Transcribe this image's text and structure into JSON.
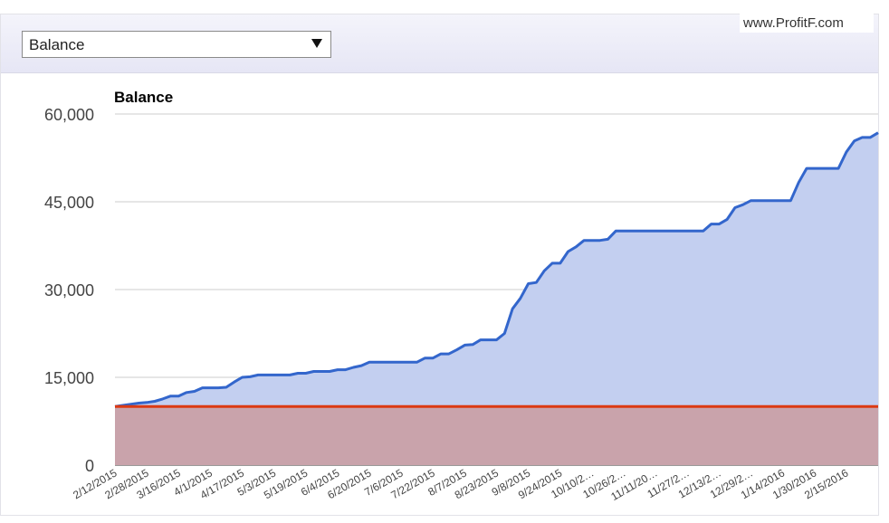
{
  "ui": {
    "dropdown": "Balance",
    "watermark": "www.ProfitF.com"
  },
  "chart_data": {
    "type": "area",
    "title": "Balance",
    "categories": [
      "2/12/2015",
      null,
      null,
      null,
      "2/28/2015",
      null,
      null,
      null,
      "3/16/2015",
      null,
      null,
      null,
      "4/1/2015",
      null,
      null,
      null,
      "4/17/2015",
      null,
      null,
      null,
      "5/3/2015",
      null,
      null,
      null,
      "5/19/2015",
      null,
      null,
      null,
      "6/4/2015",
      null,
      null,
      null,
      "6/20/2015",
      null,
      null,
      null,
      "7/6/2015",
      null,
      null,
      null,
      "7/22/2015",
      null,
      null,
      null,
      "8/7/2015",
      null,
      null,
      null,
      "8/23/2015",
      null,
      null,
      null,
      "9/8/2015",
      null,
      null,
      null,
      "9/24/2015",
      null,
      null,
      null,
      "10/10/2…",
      null,
      null,
      null,
      "10/26/2…",
      null,
      null,
      null,
      "11/11/20…",
      null,
      null,
      null,
      "11/27/2…",
      null,
      null,
      null,
      "12/13/2…",
      null,
      null,
      null,
      "12/29/2…",
      null,
      null,
      null,
      "1/14/2016",
      null,
      null,
      null,
      "1/30/2016",
      null,
      null,
      null,
      "2/15/2016",
      null,
      null,
      null,
      null
    ],
    "series": [
      {
        "color": "#3366cc",
        "fill": "#c3cff0",
        "values": [
          10000,
          10200,
          10400,
          10600,
          10700,
          10900,
          11300,
          11800,
          11800,
          12400,
          12600,
          13200,
          13200,
          13200,
          13300,
          14200,
          15000,
          15100,
          15400,
          15400,
          15400,
          15400,
          15400,
          15700,
          15700,
          16000,
          16000,
          16000,
          16300,
          16300,
          16700,
          17000,
          17600,
          17600,
          17600,
          17600,
          17600,
          17600,
          17600,
          18300,
          18300,
          19000,
          19000,
          19700,
          20500,
          20600,
          21400,
          21400,
          21400,
          22500,
          26700,
          28500,
          31000,
          31200,
          33200,
          34500,
          34500,
          36500,
          37300,
          38400,
          38400,
          38400,
          38600,
          40000,
          40000,
          40000,
          40000,
          40000,
          40000,
          40000,
          40000,
          40000,
          40000,
          40000,
          40000,
          41200,
          41200,
          42000,
          44000,
          44500,
          45200,
          45200,
          45200,
          45200,
          45200,
          45200,
          48300,
          50700,
          50700,
          50700,
          50700,
          50700,
          53500,
          55400,
          56000,
          56000,
          56800
        ]
      },
      {
        "color": "#dc3912",
        "fill": "#c9a3ab",
        "values": [
          10000,
          10000,
          10000,
          10000,
          10000,
          10000,
          10000,
          10000,
          10000,
          10000,
          10000,
          10000,
          10000,
          10000,
          10000,
          10000,
          10000,
          10000,
          10000,
          10000,
          10000,
          10000,
          10000,
          10000,
          10000,
          10000,
          10000,
          10000,
          10000,
          10000,
          10000,
          10000,
          10000,
          10000,
          10000,
          10000,
          10000,
          10000,
          10000,
          10000,
          10000,
          10000,
          10000,
          10000,
          10000,
          10000,
          10000,
          10000,
          10000,
          10000,
          10000,
          10000,
          10000,
          10000,
          10000,
          10000,
          10000,
          10000,
          10000,
          10000,
          10000,
          10000,
          10000,
          10000,
          10000,
          10000,
          10000,
          10000,
          10000,
          10000,
          10000,
          10000,
          10000,
          10000,
          10000,
          10000,
          10000,
          10000,
          10000,
          10000,
          10000,
          10000,
          10000,
          10000,
          10000,
          10000,
          10000,
          10000,
          10000,
          10000,
          10000,
          10000,
          10000,
          10000,
          10000,
          10000,
          10000
        ]
      }
    ],
    "ylim": [
      0,
      60000
    ],
    "yticks": [
      0,
      {
        "value": 15000,
        "label": "15,000"
      },
      {
        "value": 30000,
        "label": "30,000"
      },
      {
        "value": 45000,
        "label": "45,000"
      },
      {
        "value": 60000,
        "label": "60,000"
      }
    ],
    "grid": true
  }
}
